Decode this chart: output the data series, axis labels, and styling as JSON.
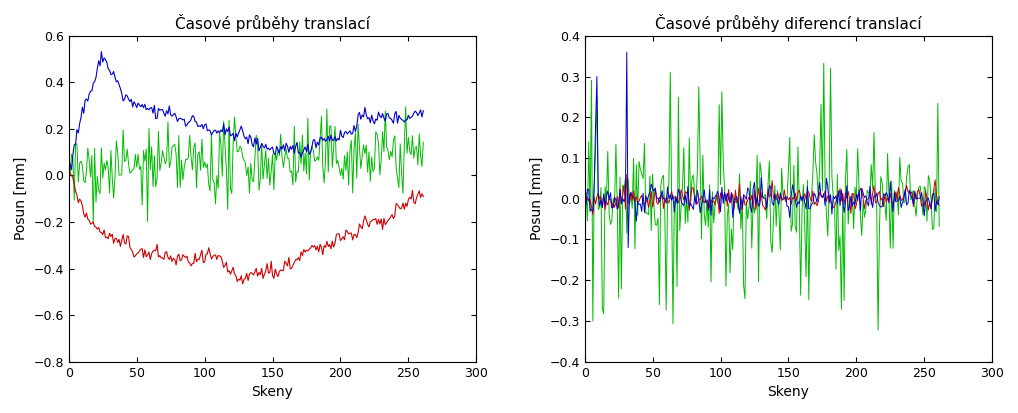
{
  "title1": "Časové průběhy translací",
  "title2": "Časové průběhy diferencí translací",
  "xlabel": "Skeny",
  "ylabel": "Posun [mm]",
  "xlim1": [
    0,
    300
  ],
  "ylim1": [
    -0.8,
    0.6
  ],
  "xlim2": [
    0,
    300
  ],
  "ylim2": [
    -0.4,
    0.4
  ],
  "yticks1": [
    -0.8,
    -0.6,
    -0.4,
    -0.2,
    0.0,
    0.2,
    0.4,
    0.6
  ],
  "yticks2": [
    -0.4,
    -0.3,
    -0.2,
    -0.1,
    0.0,
    0.1,
    0.2,
    0.3,
    0.4
  ],
  "xticks": [
    0,
    50,
    100,
    150,
    200,
    250,
    300
  ],
  "colors": {
    "blue": "#0000cc",
    "red": "#cc0000",
    "green": "#00bb00"
  },
  "n_points": 261,
  "seed": 42
}
